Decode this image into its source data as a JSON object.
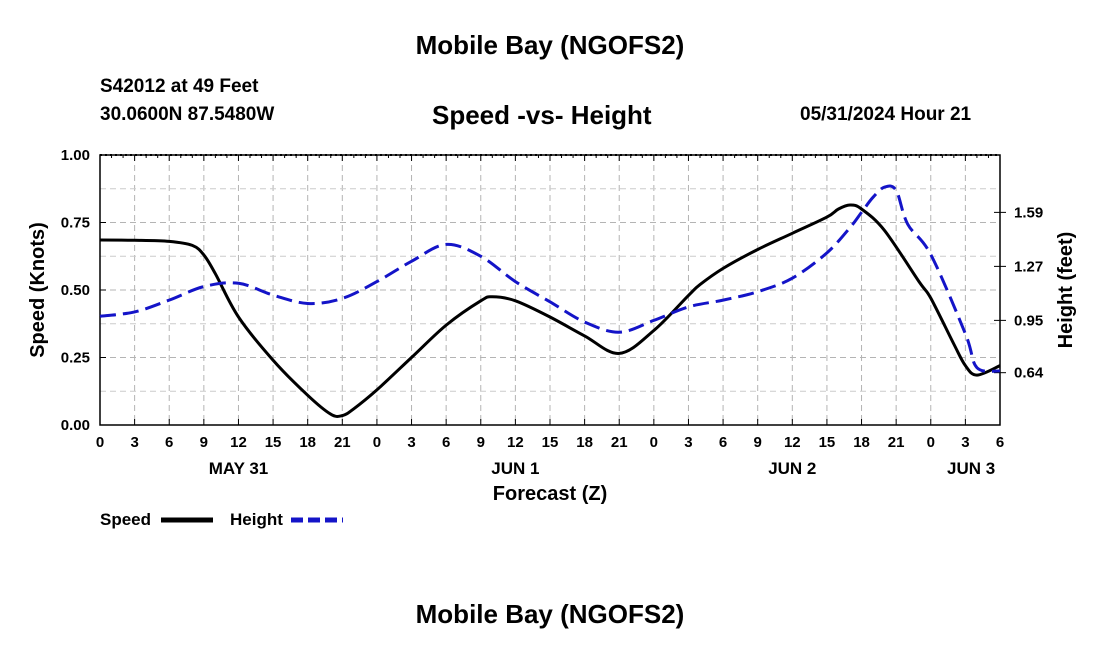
{
  "header": {
    "title": "Mobile Bay (NGOFS2)",
    "station": "S42012 at 49 Feet",
    "coordinates": "30.0600N  87.5480W",
    "subtitle": "Speed -vs- Height",
    "datetime": "05/31/2024 Hour 21",
    "bottom_title": "Mobile Bay (NGOFS2)"
  },
  "chart_data": {
    "type": "line",
    "title": "Speed -vs- Height",
    "xlabel": "Forecast (Z)",
    "ylabel": "Speed (Knots)",
    "y2label": "Height (feet)",
    "xlim": [
      0,
      78
    ],
    "ylim": [
      0,
      1
    ],
    "y2lim": [
      0.33,
      1.93
    ],
    "x_tick_values": [
      0,
      3,
      6,
      9,
      12,
      15,
      18,
      21,
      24,
      27,
      30,
      33,
      36,
      39,
      42,
      45,
      48,
      51,
      54,
      57,
      60,
      63,
      66,
      69,
      72,
      75,
      78
    ],
    "x_tick_labels": [
      "0",
      "3",
      "6",
      "9",
      "12",
      "15",
      "18",
      "21",
      "0",
      "3",
      "6",
      "9",
      "12",
      "15",
      "18",
      "21",
      "0",
      "3",
      "6",
      "9",
      "12",
      "15",
      "18",
      "21",
      "0",
      "3",
      "6"
    ],
    "day_labels": [
      {
        "label": "MAY 31",
        "x": 12
      },
      {
        "label": "JUN 1",
        "x": 36
      },
      {
        "label": "JUN 2",
        "x": 60
      },
      {
        "label": "JUN 3",
        "x": 75.5
      }
    ],
    "y_tick_values": [
      0.0,
      0.25,
      0.5,
      0.75,
      1.0
    ],
    "y_tick_labels": [
      "0.00",
      "0.25",
      "0.50",
      "0.75",
      "1.00"
    ],
    "y2_tick_values": [
      0.64,
      0.95,
      1.27,
      1.59
    ],
    "y2_tick_labels": [
      "0.64",
      "0.95",
      "1.27",
      "1.59"
    ],
    "grid": true,
    "legend_position": "bottom-left",
    "series": [
      {
        "name": "Speed",
        "axis": "left",
        "color": "#000000",
        "style": "solid",
        "x": [
          0,
          3,
          6,
          8,
          9,
          10,
          12,
          15,
          18,
          20,
          21,
          22,
          24,
          27,
          30,
          33,
          34,
          36,
          39,
          42,
          45,
          48,
          51,
          52,
          54,
          57,
          60,
          63,
          64,
          65,
          66,
          68,
          71,
          72,
          74,
          75,
          76,
          78
        ],
        "values": [
          0.685,
          0.684,
          0.68,
          0.665,
          0.63,
          0.56,
          0.4,
          0.24,
          0.11,
          0.04,
          0.035,
          0.06,
          0.13,
          0.25,
          0.37,
          0.46,
          0.475,
          0.46,
          0.4,
          0.33,
          0.265,
          0.35,
          0.48,
          0.52,
          0.58,
          0.65,
          0.71,
          0.77,
          0.8,
          0.815,
          0.8,
          0.72,
          0.53,
          0.47,
          0.3,
          0.22,
          0.185,
          0.22
        ]
      },
      {
        "name": "Height",
        "axis": "right",
        "color": "#1414c8",
        "style": "dashed",
        "x": [
          0,
          3,
          6,
          9,
          12,
          15,
          18,
          21,
          24,
          27,
          30,
          33,
          36,
          39,
          42,
          45,
          48,
          51,
          54,
          57,
          60,
          63,
          65,
          66,
          67,
          68,
          69,
          70,
          72,
          75,
          76,
          78
        ],
        "values": [
          0.975,
          1.0,
          1.07,
          1.15,
          1.17,
          1.1,
          1.05,
          1.08,
          1.18,
          1.3,
          1.4,
          1.33,
          1.18,
          1.06,
          0.94,
          0.88,
          0.95,
          1.03,
          1.07,
          1.12,
          1.2,
          1.35,
          1.5,
          1.59,
          1.68,
          1.74,
          1.72,
          1.52,
          1.34,
          0.87,
          0.67,
          0.65
        ]
      }
    ]
  }
}
